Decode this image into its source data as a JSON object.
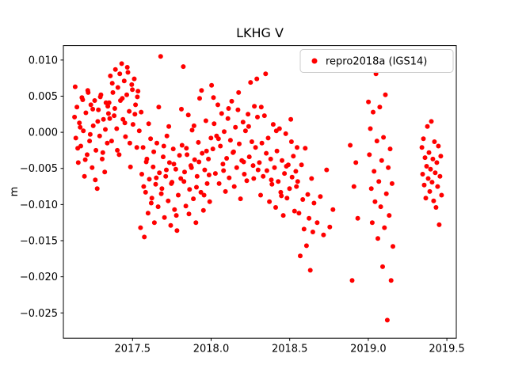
{
  "figure": {
    "background": "#ffffff"
  },
  "chart_data": {
    "type": "scatter",
    "title": "LKHG V",
    "xlabel": "",
    "ylabel": "m",
    "legend": {
      "label": "repro2018a (IGS14)",
      "position": "upper right",
      "marker_color": "#ff0000",
      "border_color": "#cccccc",
      "background": "#ffffff"
    },
    "grid": false,
    "xlim": [
      2017.06,
      2019.56
    ],
    "ylim": [
      -0.0285,
      0.012
    ],
    "xticks": [
      2017.5,
      2018.0,
      2018.5,
      2019.0,
      2019.5
    ],
    "xtick_labels": [
      "2017.5",
      "2018.0",
      "2018.5",
      "2019.0",
      "2019.5"
    ],
    "yticks": [
      0.01,
      0.005,
      0.0,
      -0.005,
      -0.01,
      -0.015,
      -0.02,
      -0.025
    ],
    "ytick_labels": [
      "0.010",
      "0.005",
      "0.000",
      "−0.005",
      "−0.010",
      "−0.015",
      "−0.020",
      "−0.025"
    ],
    "marker": {
      "color": "#ff0000",
      "radius": 3
    },
    "series_name": "repro2018a (IGS14)",
    "points": [
      [
        2017.131,
        0.0021
      ],
      [
        2017.139,
        -0.0008
      ],
      [
        2017.146,
        0.0035
      ],
      [
        2017.155,
        -0.0042
      ],
      [
        2017.162,
        0.0013
      ],
      [
        2017.171,
        -0.0019
      ],
      [
        2017.178,
        0.0048
      ],
      [
        2017.187,
        0.0002
      ],
      [
        2017.194,
        -0.0061
      ],
      [
        2017.203,
        0.0027
      ],
      [
        2017.211,
        -0.0031
      ],
      [
        2017.218,
        0.0055
      ],
      [
        2017.227,
        -0.0012
      ],
      [
        2017.235,
        0.0038
      ],
      [
        2017.243,
        -0.0049
      ],
      [
        2017.25,
        0.0009
      ],
      [
        2017.259,
        0.0044
      ],
      [
        2017.267,
        -0.0025
      ],
      [
        2017.275,
        -0.0078
      ],
      [
        2017.283,
        0.0031
      ],
      [
        2017.291,
        -0.0005
      ],
      [
        2017.299,
        0.0052
      ],
      [
        2017.307,
        -0.0037
      ],
      [
        2017.315,
        0.0018
      ],
      [
        2017.323,
        -0.0055
      ],
      [
        2017.331,
        0.0041
      ],
      [
        2017.339,
        -0.0015
      ],
      [
        2017.347,
        0.0026
      ],
      [
        2017.135,
        0.0063
      ],
      [
        2017.151,
        -0.0022
      ],
      [
        2017.167,
        0.0007
      ],
      [
        2017.183,
        0.0045
      ],
      [
        2017.199,
        -0.0038
      ],
      [
        2017.215,
        0.0058
      ],
      [
        2017.231,
        -0.0003
      ],
      [
        2017.247,
        0.0032
      ],
      [
        2017.263,
        -0.0066
      ],
      [
        2017.279,
        0.0015
      ],
      [
        2017.295,
        0.0049
      ],
      [
        2017.311,
        -0.0028
      ],
      [
        2017.327,
        0.0004
      ],
      [
        2017.343,
        0.0036
      ],
      [
        2017.351,
        0.0041
      ],
      [
        2017.359,
        0.0078
      ],
      [
        2017.367,
        -0.0012
      ],
      [
        2017.375,
        0.0055
      ],
      [
        2017.383,
        0.0023
      ],
      [
        2017.391,
        0.0087
      ],
      [
        2017.399,
        0.0005
      ],
      [
        2017.407,
        0.0062
      ],
      [
        2017.415,
        -0.0031
      ],
      [
        2017.423,
        0.0044
      ],
      [
        2017.431,
        0.0095
      ],
      [
        2017.439,
        0.0018
      ],
      [
        2017.447,
        0.0071
      ],
      [
        2017.455,
        -0.0006
      ],
      [
        2017.463,
        0.0052
      ],
      [
        2017.471,
        0.0083
      ],
      [
        2017.479,
        0.0029
      ],
      [
        2017.487,
        -0.0048
      ],
      [
        2017.495,
        0.0066
      ],
      [
        2017.503,
        0.0011
      ],
      [
        2017.511,
        0.0074
      ],
      [
        2017.519,
        0.0038
      ],
      [
        2017.527,
        -0.0021
      ],
      [
        2017.535,
        0.0057
      ],
      [
        2017.543,
        0.0002
      ],
      [
        2017.355,
        0.0019
      ],
      [
        2017.371,
        0.0068
      ],
      [
        2017.387,
        0.0033
      ],
      [
        2017.403,
        -0.0025
      ],
      [
        2017.419,
        0.0081
      ],
      [
        2017.435,
        0.0047
      ],
      [
        2017.451,
        0.0013
      ],
      [
        2017.467,
        0.009
      ],
      [
        2017.483,
        -0.0015
      ],
      [
        2017.499,
        0.0059
      ],
      [
        2017.515,
        0.0025
      ],
      [
        2017.531,
        0.0049
      ],
      [
        2017.551,
        -0.0132
      ],
      [
        2017.559,
        -0.0058
      ],
      [
        2017.567,
        -0.0021
      ],
      [
        2017.575,
        -0.0145
      ],
      [
        2017.583,
        -0.0083
      ],
      [
        2017.591,
        -0.0037
      ],
      [
        2017.599,
        -0.0112
      ],
      [
        2017.607,
        -0.0065
      ],
      [
        2017.615,
        -0.0009
      ],
      [
        2017.623,
        -0.0091
      ],
      [
        2017.631,
        -0.0048
      ],
      [
        2017.639,
        -0.0125
      ],
      [
        2017.647,
        -0.0072
      ],
      [
        2017.655,
        -0.0015
      ],
      [
        2017.663,
        -0.0103
      ],
      [
        2017.671,
        -0.0056
      ],
      [
        2017.679,
        0.0105
      ],
      [
        2017.687,
        -0.0078
      ],
      [
        2017.695,
        -0.0034
      ],
      [
        2017.703,
        -0.0118
      ],
      [
        2017.711,
        -0.0061
      ],
      [
        2017.719,
        -0.0005
      ],
      [
        2017.727,
        -0.0095
      ],
      [
        2017.735,
        -0.0042
      ],
      [
        2017.743,
        -0.0129
      ],
      [
        2017.751,
        -0.0069
      ],
      [
        2017.759,
        -0.0023
      ],
      [
        2017.767,
        -0.0107
      ],
      [
        2017.775,
        -0.0051
      ],
      [
        2017.783,
        -0.0136
      ],
      [
        2017.791,
        -0.0087
      ],
      [
        2017.799,
        -0.0032
      ],
      [
        2017.555,
        0.0028
      ],
      [
        2017.571,
        -0.0075
      ],
      [
        2017.587,
        -0.0041
      ],
      [
        2017.603,
        0.0012
      ],
      [
        2017.619,
        -0.0098
      ],
      [
        2017.635,
        -0.0027
      ],
      [
        2017.651,
        -0.0063
      ],
      [
        2017.667,
        0.0035
      ],
      [
        2017.683,
        -0.0085
      ],
      [
        2017.699,
        -0.0019
      ],
      [
        2017.715,
        -0.0052
      ],
      [
        2017.731,
        0.0008
      ],
      [
        2017.747,
        -0.0071
      ],
      [
        2017.763,
        -0.0044
      ],
      [
        2017.779,
        -0.0115
      ],
      [
        2017.807,
        -0.0064
      ],
      [
        2017.815,
        -0.0018
      ],
      [
        2017.823,
        0.0091
      ],
      [
        2017.831,
        -0.0055
      ],
      [
        2017.839,
        -0.0102
      ],
      [
        2017.847,
        -0.0031
      ],
      [
        2017.855,
        0.0024
      ],
      [
        2017.863,
        -0.0079
      ],
      [
        2017.871,
        -0.0046
      ],
      [
        2017.879,
        0.0003
      ],
      [
        2017.887,
        -0.0092
      ],
      [
        2017.895,
        -0.0038
      ],
      [
        2017.903,
        -0.0125
      ],
      [
        2017.911,
        -0.0061
      ],
      [
        2017.919,
        -0.0014
      ],
      [
        2017.927,
        0.0047
      ],
      [
        2017.935,
        -0.0083
      ],
      [
        2017.943,
        -0.0029
      ],
      [
        2017.951,
        -0.0108
      ],
      [
        2017.959,
        -0.0052
      ],
      [
        2017.967,
        0.0016
      ],
      [
        2017.975,
        -0.0071
      ],
      [
        2017.983,
        -0.0037
      ],
      [
        2017.991,
        -0.0096
      ],
      [
        2017.999,
        -0.0008
      ],
      [
        2017.811,
        0.0032
      ],
      [
        2017.827,
        -0.0068
      ],
      [
        2017.843,
        -0.0022
      ],
      [
        2017.859,
        -0.0113
      ],
      [
        2017.875,
        -0.0049
      ],
      [
        2017.891,
        0.0009
      ],
      [
        2017.907,
        -0.0076
      ],
      [
        2017.923,
        -0.0041
      ],
      [
        2017.939,
        0.0058
      ],
      [
        2017.955,
        -0.0087
      ],
      [
        2017.971,
        -0.0026
      ],
      [
        2017.987,
        -0.0059
      ],
      [
        2018.003,
        0.0065
      ],
      [
        2018.011,
        -0.0023
      ],
      [
        2018.019,
        0.0012
      ],
      [
        2018.027,
        -0.0057
      ],
      [
        2018.035,
        -0.0005
      ],
      [
        2018.043,
        0.0038
      ],
      [
        2018.051,
        -0.0071
      ],
      [
        2018.059,
        -0.0019
      ],
      [
        2018.067,
        0.0026
      ],
      [
        2018.075,
        -0.0044
      ],
      [
        2018.083,
        0.0001
      ],
      [
        2018.091,
        -0.0082
      ],
      [
        2018.099,
        -0.0036
      ],
      [
        2018.107,
        0.0019
      ],
      [
        2018.115,
        -0.0063
      ],
      [
        2018.123,
        -0.0011
      ],
      [
        2018.131,
        0.0043
      ],
      [
        2018.139,
        -0.0028
      ],
      [
        2018.147,
        -0.0075
      ],
      [
        2018.155,
        0.0007
      ],
      [
        2018.163,
        -0.0049
      ],
      [
        2018.171,
        0.0031
      ],
      [
        2018.179,
        -0.0016
      ],
      [
        2018.187,
        -0.0092
      ],
      [
        2018.195,
        -0.0039
      ],
      [
        2018.203,
        0.0014
      ],
      [
        2018.211,
        -0.0058
      ],
      [
        2018.219,
        0.0002
      ],
      [
        2018.227,
        -0.0067
      ],
      [
        2018.235,
        0.0025
      ],
      [
        2018.243,
        -0.0034
      ],
      [
        2018.251,
        0.0069
      ],
      [
        2018.259,
        -0.0013
      ],
      [
        2018.267,
        -0.0046
      ],
      [
        2018.275,
        0.0036
      ],
      [
        2018.283,
        -0.0021
      ],
      [
        2018.291,
        0.0074
      ],
      [
        2018.299,
        -0.0052
      ],
      [
        2018.015,
        0.0048
      ],
      [
        2018.047,
        -0.0009
      ],
      [
        2018.079,
        -0.0053
      ],
      [
        2018.111,
        0.0033
      ],
      [
        2018.143,
        -0.0027
      ],
      [
        2018.175,
        0.0055
      ],
      [
        2018.207,
        -0.0041
      ],
      [
        2018.239,
        0.0008
      ],
      [
        2018.271,
        -0.0064
      ],
      [
        2018.295,
        0.0021
      ],
      [
        2018.307,
        -0.0042
      ],
      [
        2018.315,
        -0.0087
      ],
      [
        2018.323,
        -0.0015
      ],
      [
        2018.331,
        -0.0061
      ],
      [
        2018.339,
        0.0023
      ],
      [
        2018.347,
        0.0081
      ],
      [
        2018.355,
        -0.0053
      ],
      [
        2018.363,
        -0.0008
      ],
      [
        2018.371,
        -0.0096
      ],
      [
        2018.379,
        -0.0037
      ],
      [
        2018.387,
        -0.0072
      ],
      [
        2018.395,
        0.0011
      ],
      [
        2018.403,
        -0.0049
      ],
      [
        2018.411,
        -0.0104
      ],
      [
        2018.419,
        -0.0026
      ],
      [
        2018.427,
        -0.0068
      ],
      [
        2018.435,
        0.0005
      ],
      [
        2018.443,
        -0.0083
      ],
      [
        2018.451,
        -0.0039
      ],
      [
        2018.459,
        -0.0115
      ],
      [
        2018.467,
        -0.0057
      ],
      [
        2018.475,
        -0.0002
      ],
      [
        2018.483,
        -0.0091
      ],
      [
        2018.491,
        -0.0045
      ],
      [
        2018.499,
        -0.0078
      ],
      [
        2018.507,
        0.0018
      ],
      [
        2018.515,
        -0.0062
      ],
      [
        2018.523,
        -0.0033
      ],
      [
        2018.531,
        -0.0109
      ],
      [
        2018.539,
        -0.0054
      ],
      [
        2018.547,
        -0.0021
      ],
      [
        2018.319,
        0.0035
      ],
      [
        2018.351,
        -0.0029
      ],
      [
        2018.383,
        -0.0066
      ],
      [
        2018.415,
        0.0002
      ],
      [
        2018.447,
        -0.0088
      ],
      [
        2018.479,
        -0.0047
      ],
      [
        2018.511,
        -0.0013
      ],
      [
        2018.543,
        -0.0075
      ],
      [
        2018.551,
        -0.0068
      ],
      [
        2018.559,
        -0.0112
      ],
      [
        2018.567,
        -0.0171
      ],
      [
        2018.575,
        -0.0045
      ],
      [
        2018.583,
        -0.0093
      ],
      [
        2018.591,
        -0.0134
      ],
      [
        2018.599,
        -0.0022
      ],
      [
        2018.607,
        -0.0157
      ],
      [
        2018.615,
        -0.0086
      ],
      [
        2018.623,
        -0.0119
      ],
      [
        2018.631,
        -0.0191
      ],
      [
        2018.639,
        -0.0064
      ],
      [
        2018.647,
        -0.0138
      ],
      [
        2018.655,
        -0.0098
      ],
      [
        2018.675,
        -0.0125
      ],
      [
        2018.695,
        -0.0089
      ],
      [
        2018.715,
        -0.0142
      ],
      [
        2018.735,
        -0.0052
      ],
      [
        2018.755,
        -0.0131
      ],
      [
        2018.775,
        -0.0107
      ],
      [
        2018.885,
        -0.0018
      ],
      [
        2018.897,
        -0.0205
      ],
      [
        2018.909,
        -0.0075
      ],
      [
        2018.921,
        -0.0042
      ],
      [
        2018.933,
        -0.0119
      ],
      [
        2019.001,
        0.0042
      ],
      [
        2019.007,
        -0.0031
      ],
      [
        2019.013,
        0.0005
      ],
      [
        2019.019,
        -0.0078
      ],
      [
        2019.025,
        -0.0125
      ],
      [
        2019.031,
        0.0028
      ],
      [
        2019.037,
        -0.0054
      ],
      [
        2019.043,
        -0.0096
      ],
      [
        2019.049,
        0.0081
      ],
      [
        2019.055,
        -0.0012
      ],
      [
        2019.061,
        -0.0147
      ],
      [
        2019.067,
        -0.0068
      ],
      [
        2019.073,
        0.0035
      ],
      [
        2019.079,
        -0.0103
      ],
      [
        2019.085,
        -0.0039
      ],
      [
        2019.091,
        -0.0186
      ],
      [
        2019.097,
        -0.0007
      ],
      [
        2019.103,
        -0.0132
      ],
      [
        2019.109,
        0.0052
      ],
      [
        2019.115,
        -0.0085
      ],
      [
        2019.121,
        -0.026
      ],
      [
        2019.127,
        -0.0049
      ],
      [
        2019.133,
        -0.0115
      ],
      [
        2019.139,
        -0.0023
      ],
      [
        2019.145,
        -0.0205
      ],
      [
        2019.151,
        -0.0071
      ],
      [
        2019.157,
        -0.0158
      ],
      [
        2019.341,
        -0.0021
      ],
      [
        2019.346,
        -0.0058
      ],
      [
        2019.351,
        -0.0009
      ],
      [
        2019.356,
        -0.0073
      ],
      [
        2019.361,
        -0.0035
      ],
      [
        2019.366,
        -0.0091
      ],
      [
        2019.371,
        -0.0047
      ],
      [
        2019.376,
        0.0008
      ],
      [
        2019.381,
        -0.0064
      ],
      [
        2019.386,
        -0.0028
      ],
      [
        2019.391,
        -0.0082
      ],
      [
        2019.396,
        -0.0051
      ],
      [
        2019.401,
        0.0015
      ],
      [
        2019.406,
        -0.0069
      ],
      [
        2019.411,
        -0.0037
      ],
      [
        2019.416,
        -0.0095
      ],
      [
        2019.421,
        -0.0013
      ],
      [
        2019.426,
        -0.0056
      ],
      [
        2019.431,
        -0.0104
      ],
      [
        2019.436,
        -0.0042
      ],
      [
        2019.441,
        -0.0075
      ],
      [
        2019.446,
        -0.0019
      ],
      [
        2019.451,
        -0.0128
      ],
      [
        2019.456,
        -0.0061
      ],
      [
        2019.461,
        -0.0033
      ],
      [
        2019.466,
        -0.0087
      ]
    ]
  }
}
